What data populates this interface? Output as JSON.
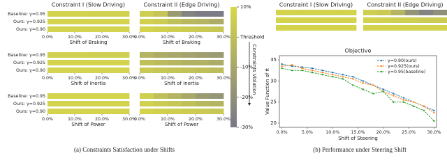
{
  "figure_a": {
    "caption": "(a) Constraints Satisfaction under Shifts",
    "column_titles": [
      "Constraint I (Slow Driving)",
      "Constraint II (Edge Driving)"
    ],
    "row_labels": [
      "Baseline: γ=0.95",
      "Ours: γ=0.925",
      "Ours: γ=0.90"
    ],
    "xlim": [
      0,
      30
    ],
    "xticks": [
      {
        "value": 0,
        "label": "0.0%"
      },
      {
        "value": 10,
        "label": "10.0%"
      },
      {
        "value": 20,
        "label": "20.0%"
      },
      {
        "value": 30,
        "label": "30.0%"
      }
    ],
    "groups": [
      {
        "xlabel": "Shift of Braking",
        "panels": [
          {
            "rows": [
              [
                8,
                8,
                8,
                7,
                7,
                7
              ],
              [
                8,
                8,
                8,
                8,
                8,
                8
              ],
              [
                8,
                8,
                8,
                8,
                8,
                8
              ]
            ]
          },
          {
            "rows": [
              [
                6,
                2,
                -15,
                -25,
                -28,
                -28
              ],
              [
                7,
                5,
                0,
                -3,
                -5,
                -8
              ],
              [
                8,
                7,
                6,
                5,
                4,
                3
              ]
            ]
          }
        ]
      },
      {
        "xlabel": "Shift of Inertia",
        "panels": [
          {
            "rows": [
              [
                7,
                7,
                7,
                6,
                6,
                6
              ],
              [
                8,
                8,
                8,
                8,
                8,
                8
              ],
              [
                8,
                8,
                8,
                8,
                8,
                8
              ]
            ]
          },
          {
            "rows": [
              [
                -5,
                -8,
                -10,
                -12,
                -14,
                -15
              ],
              [
                0,
                -2,
                -4,
                -6,
                -6,
                -8
              ],
              [
                4,
                3,
                2,
                1,
                0,
                -1
              ]
            ]
          }
        ]
      },
      {
        "xlabel": "Shift of Power",
        "panels": [
          {
            "rows": [
              [
                8,
                8,
                8,
                8,
                8,
                8
              ],
              [
                8,
                8,
                8,
                8,
                8,
                8
              ],
              [
                8,
                8,
                8,
                8,
                8,
                8
              ]
            ]
          },
          {
            "rows": [
              [
                6,
                0,
                -5,
                -10,
                -15,
                -18
              ],
              [
                7,
                5,
                3,
                0,
                -3,
                -5
              ],
              [
                8,
                7,
                6,
                5,
                4,
                3
              ]
            ]
          }
        ]
      }
    ]
  },
  "colorbar": {
    "lim": [
      -30,
      10
    ],
    "colors": [
      "#77778a",
      "#d8d84a"
    ],
    "ticks": [
      {
        "value": 10,
        "label": "10%"
      },
      {
        "value": -10,
        "label": "-10%"
      },
      {
        "value": -20,
        "label": "-20%"
      },
      {
        "value": -30,
        "label": "-30%"
      }
    ],
    "threshold": 0,
    "threshold_label": "Threshold",
    "label": "Constraints Violation"
  },
  "figure_b": {
    "caption": "(b) Performance under Steering Shift",
    "panel_titles": [
      "Constraint I (Slow Driving)",
      "Constraint II (Edge Driving)"
    ],
    "panels": [
      {
        "rows": [
          [
            8,
            8,
            8,
            8,
            8,
            8
          ],
          [
            8,
            8,
            8,
            8,
            8,
            8
          ],
          [
            8,
            8,
            8,
            8,
            8,
            8
          ]
        ]
      },
      {
        "rows": [
          [
            6,
            4,
            -5,
            -18,
            -25,
            -20
          ],
          [
            8,
            7,
            6,
            6,
            5,
            5
          ],
          [
            8,
            8,
            8,
            8,
            8,
            8
          ]
        ]
      }
    ],
    "chart": {
      "type": "line",
      "title": "Objective",
      "xlabel": "Shift of Steering",
      "ylabel": "Value Function of π̂",
      "x": [
        0,
        2,
        4,
        6,
        8,
        10,
        12,
        14,
        16,
        18,
        20,
        22,
        24,
        26,
        28,
        30
      ],
      "xlim": [
        -0.5,
        30.5
      ],
      "xticks": [
        {
          "value": 0,
          "label": "0.0%"
        },
        {
          "value": 5,
          "label": "5.0%"
        },
        {
          "value": 10,
          "label": "10.0%"
        },
        {
          "value": 15,
          "label": "15.0%"
        },
        {
          "value": 20,
          "label": "20.0%"
        },
        {
          "value": 25,
          "label": "25.0%"
        },
        {
          "value": 30,
          "label": "30.0%"
        }
      ],
      "ylim": [
        19,
        36
      ],
      "yticks": [
        20,
        25,
        30,
        35
      ],
      "series": [
        {
          "name": "γ=0.90(ours)",
          "color": "#1f77b4",
          "values": [
            34,
            33.5,
            33.3,
            33,
            32.5,
            32,
            31.5,
            31,
            30,
            29,
            28,
            27,
            26,
            25,
            24,
            23
          ]
        },
        {
          "name": "γ=0.925(ours)",
          "color": "#ff7f0e",
          "values": [
            33.5,
            33.8,
            33,
            32.5,
            32,
            31.5,
            31,
            30.5,
            29.5,
            29,
            27.5,
            26.5,
            25.5,
            25,
            24,
            22.5
          ]
        },
        {
          "name": "γ=0.95(baseline)",
          "color": "#2ca02c",
          "values": [
            33,
            32.5,
            32.5,
            32,
            31.5,
            31,
            30.5,
            29,
            28,
            27,
            27.5,
            25,
            25,
            24,
            23,
            20.5
          ]
        }
      ]
    }
  }
}
